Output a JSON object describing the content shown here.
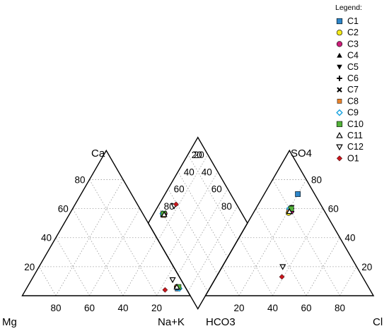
{
  "chart_data": {
    "type": "scatter",
    "subtype": "piper-trilinear",
    "title": "",
    "grid": true,
    "legend_position": "top-right",
    "legend_title": "Legend:",
    "corner_labels": {
      "cation_left": "Mg",
      "cation_right": "Na+K",
      "cation_top": "Ca",
      "anion_left": "HCO3",
      "anion_right": "Cl",
      "anion_top": "SO4"
    },
    "tick_labels": {
      "cation_bottom": [
        "80",
        "60",
        "40",
        "20"
      ],
      "cation_left_side": [
        "20",
        "40",
        "60",
        "80"
      ],
      "anion_bottom": [
        "20",
        "40",
        "60",
        "80"
      ],
      "anion_right_side": [
        "20",
        "40",
        "60",
        "80"
      ],
      "diamond_upper_left": [
        "20",
        "40",
        "60",
        "80"
      ],
      "diamond_upper_right": [
        "20",
        "40",
        "60",
        "80"
      ]
    },
    "series": [
      {
        "name": "C1",
        "marker": "square",
        "color": "#2e86c9",
        "cations": {
          "Ca": 5,
          "Mg": 5,
          "NaK": 90
        },
        "anions": {
          "SO4": 70,
          "Cl": 20,
          "HCO3": 10
        }
      },
      {
        "name": "C2",
        "marker": "circle",
        "color": "#f4ea1a",
        "cations": {
          "Ca": 6,
          "Mg": 5,
          "NaK": 89
        },
        "anions": {
          "SO4": 57,
          "Cl": 21,
          "HCO3": 22
        }
      },
      {
        "name": "C3",
        "marker": "circle",
        "color": "#cc1f7a",
        "cations": {
          "Ca": 6,
          "Mg": 5,
          "NaK": 89
        },
        "anions": {
          "SO4": 58,
          "Cl": 22,
          "HCO3": 20
        }
      },
      {
        "name": "C4",
        "marker": "triangle-up",
        "color": "#000000",
        "cations": {
          "Ca": 6,
          "Mg": 4,
          "NaK": 90
        },
        "anions": {
          "SO4": 60,
          "Cl": 21,
          "HCO3": 19
        }
      },
      {
        "name": "C5",
        "marker": "triangle-down",
        "color": "#000000",
        "cations": {
          "Ca": 6,
          "Mg": 4,
          "NaK": 90
        },
        "anions": {
          "SO4": 61,
          "Cl": 21,
          "HCO3": 18
        }
      },
      {
        "name": "C6",
        "marker": "plus",
        "color": "#000000",
        "cations": {
          "Ca": 6,
          "Mg": 5,
          "NaK": 89
        },
        "anions": {
          "SO4": 59,
          "Cl": 21,
          "HCO3": 20
        }
      },
      {
        "name": "C7",
        "marker": "cross",
        "color": "#000000",
        "cations": {
          "Ca": 6,
          "Mg": 4,
          "NaK": 90
        },
        "anions": {
          "SO4": 59,
          "Cl": 22,
          "HCO3": 19
        }
      },
      {
        "name": "C8",
        "marker": "square-small",
        "color": "#e8822a",
        "cations": {
          "Ca": 6,
          "Mg": 5,
          "NaK": 89
        },
        "anions": {
          "SO4": 59,
          "Cl": 20,
          "HCO3": 21
        }
      },
      {
        "name": "C9",
        "marker": "diamond-open",
        "color": "#21a7e0",
        "cations": {
          "Ca": 5,
          "Mg": 4,
          "NaK": 91
        },
        "anions": {
          "SO4": 60,
          "Cl": 20,
          "HCO3": 20
        }
      },
      {
        "name": "C10",
        "marker": "square",
        "color": "#53b33a",
        "cations": {
          "Ca": 6,
          "Mg": 4,
          "NaK": 90
        },
        "anions": {
          "SO4": 60,
          "Cl": 21,
          "HCO3": 19
        }
      },
      {
        "name": "C11",
        "marker": "triangle-up-open",
        "color": "#000000",
        "cations": {
          "Ca": 6,
          "Mg": 5,
          "NaK": 89
        },
        "anions": {
          "SO4": 58,
          "Cl": 21,
          "HCO3": 21
        }
      },
      {
        "name": "C12",
        "marker": "triangle-down-open",
        "color": "#000000",
        "cations": {
          "Ca": 11,
          "Mg": 5,
          "NaK": 84
        },
        "anions": {
          "SO4": 20,
          "Cl": 36,
          "HCO3": 44
        }
      },
      {
        "name": "O1",
        "marker": "diamond",
        "color": "#c8161c",
        "cations": {
          "Ca": 4,
          "Mg": 13,
          "NaK": 83
        },
        "anions": {
          "SO4": 13,
          "Cl": 39,
          "HCO3": 48
        }
      }
    ]
  }
}
